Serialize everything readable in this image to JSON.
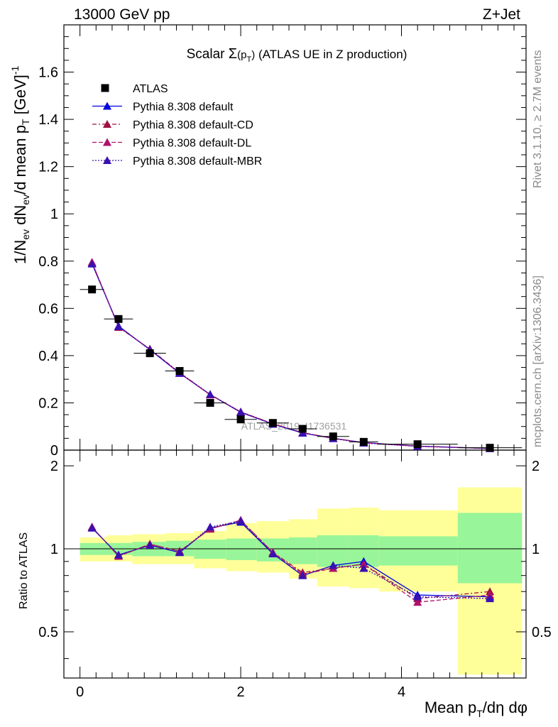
{
  "header": {
    "energy_label": "13000 GeV pp",
    "process_label": "Z+Jet"
  },
  "side_labels": {
    "rivet": "Rivet 3.1.10, ≥ 2.7M events",
    "mcplots": "mcplots.cern.ch [arXiv:1306.3436]"
  },
  "chart_data": [
    {
      "type": "scatter",
      "title": "Scalar Σ(pT) (ATLAS UE in Z production)",
      "xlabel": "Mean pT/dη dφ",
      "ylabel": "1/Nev dNev/d mean pT [GeV]-1",
      "watermark": "ATLAS_2019_I1736531",
      "xlim": [
        -0.2,
        5.55
      ],
      "ylim": [
        0,
        1.8
      ],
      "yticks": [
        "0",
        "0.2",
        "0.4",
        "0.6",
        "0.8",
        "1",
        "1.2",
        "1.4",
        "1.6"
      ],
      "legend_position": "top-left",
      "x": [
        0.15,
        0.48,
        0.87,
        1.24,
        1.62,
        2.0,
        2.4,
        2.77,
        3.15,
        3.53,
        4.2,
        5.1
      ],
      "x_errors": [
        0.15,
        0.18,
        0.2,
        0.18,
        0.2,
        0.2,
        0.2,
        0.18,
        0.2,
        0.18,
        0.5,
        0.4
      ],
      "series": [
        {
          "name": "ATLAS",
          "style": "data",
          "color": "#000000",
          "values": [
            0.68,
            0.555,
            0.41,
            0.335,
            0.2,
            0.13,
            0.115,
            0.09,
            0.058,
            0.035,
            0.025,
            0.01
          ]
        },
        {
          "name": "Pythia 8.308 default",
          "style": "solid",
          "color": "#0000dd",
          "values": [
            0.79,
            0.525,
            0.425,
            0.325,
            0.235,
            0.16,
            0.11,
            0.072,
            0.05,
            0.032,
            0.017,
            0.007
          ]
        },
        {
          "name": "Pythia 8.308 default-CD",
          "style": "dashdot",
          "color": "#a01040",
          "values": [
            0.795,
            0.52,
            0.428,
            0.328,
            0.235,
            0.162,
            0.112,
            0.074,
            0.05,
            0.031,
            0.017,
            0.007
          ]
        },
        {
          "name": "Pythia 8.308 default-DL",
          "style": "dashed",
          "color": "#b0106a",
          "values": [
            0.795,
            0.522,
            0.427,
            0.326,
            0.234,
            0.162,
            0.111,
            0.074,
            0.05,
            0.031,
            0.016,
            0.007
          ]
        },
        {
          "name": "Pythia 8.308 default-MBR",
          "style": "dotted",
          "color": "#3a10b0",
          "values": [
            0.788,
            0.523,
            0.426,
            0.327,
            0.236,
            0.161,
            0.11,
            0.073,
            0.049,
            0.03,
            0.016,
            0.007
          ]
        }
      ]
    },
    {
      "type": "line",
      "ylabel": "Ratio to ATLAS",
      "xlim": [
        -0.2,
        5.55
      ],
      "ylim": [
        0.34,
        2.28
      ],
      "xticks": [
        "0",
        "2",
        "4"
      ],
      "yticks": [
        "0.5",
        "1",
        "2"
      ],
      "bands": {
        "edges": [
          0.0,
          0.33,
          0.65,
          1.07,
          1.42,
          1.82,
          2.2,
          2.6,
          2.95,
          3.35,
          3.72,
          4.7,
          5.5
        ],
        "stat": [
          [
            0.95,
            1.05
          ],
          [
            0.95,
            1.05
          ],
          [
            0.94,
            1.06
          ],
          [
            0.94,
            1.07
          ],
          [
            0.92,
            1.08
          ],
          [
            0.91,
            1.09
          ],
          [
            0.9,
            1.09
          ],
          [
            0.88,
            1.1
          ],
          [
            0.86,
            1.12
          ],
          [
            0.86,
            1.12
          ],
          [
            0.87,
            1.11
          ],
          [
            0.75,
            1.35
          ]
        ],
        "total": [
          [
            0.9,
            1.1
          ],
          [
            0.9,
            1.12
          ],
          [
            0.88,
            1.13
          ],
          [
            0.88,
            1.14
          ],
          [
            0.85,
            1.16
          ],
          [
            0.83,
            1.24
          ],
          [
            0.82,
            1.26
          ],
          [
            0.78,
            1.28
          ],
          [
            0.73,
            1.4
          ],
          [
            0.72,
            1.41
          ],
          [
            0.7,
            1.38
          ],
          [
            0.35,
            1.67
          ]
        ],
        "colors": {
          "stat": "#99f599",
          "total": "#ffff99"
        }
      },
      "x": [
        0.15,
        0.48,
        0.87,
        1.24,
        1.62,
        2.0,
        2.4,
        2.77,
        3.15,
        3.53,
        4.2,
        5.1
      ],
      "series": [
        {
          "name": "Pythia 8.308 default",
          "color": "#0000dd",
          "style": "solid",
          "values": [
            1.19,
            0.95,
            1.03,
            0.97,
            1.19,
            1.25,
            0.96,
            0.8,
            0.87,
            0.9,
            0.68,
            0.67
          ]
        },
        {
          "name": "Pythia 8.308 default-CD",
          "color": "#a01040",
          "style": "dashdot",
          "values": [
            1.2,
            0.94,
            1.04,
            0.98,
            1.18,
            1.27,
            0.97,
            0.82,
            0.85,
            0.88,
            0.66,
            0.7
          ]
        },
        {
          "name": "Pythia 8.308 default-DL",
          "color": "#b0106a",
          "style": "dashed",
          "values": [
            1.2,
            0.94,
            1.04,
            0.98,
            1.18,
            1.27,
            0.97,
            0.81,
            0.85,
            0.88,
            0.64,
            0.68
          ]
        },
        {
          "name": "Pythia 8.308 default-MBR",
          "color": "#3a10b0",
          "style": "dotted",
          "values": [
            1.19,
            0.95,
            1.03,
            0.97,
            1.2,
            1.26,
            0.96,
            0.8,
            0.87,
            0.85,
            0.67,
            0.66
          ]
        }
      ]
    }
  ]
}
